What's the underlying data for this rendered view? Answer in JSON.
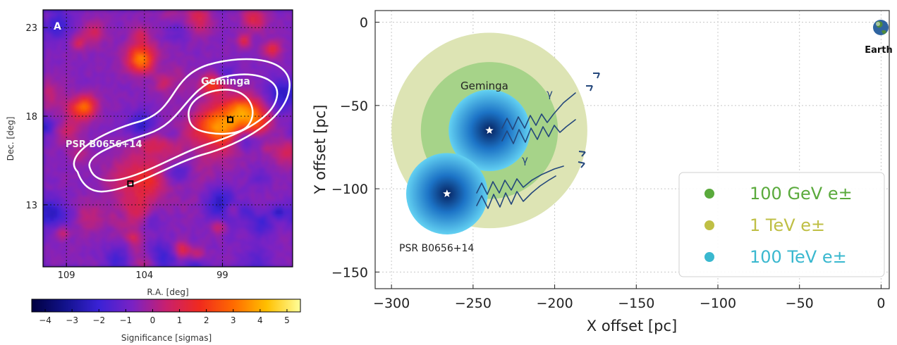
{
  "chart_data": [
    {
      "type": "heatmap",
      "panel_label": "A",
      "xlabel": "R.A. [deg]",
      "ylabel": "Dec. [deg]",
      "x_ticks": [
        109,
        104,
        99
      ],
      "y_ticks": [
        23,
        18,
        13
      ],
      "xlim": [
        110.5,
        94.5
      ],
      "ylim": [
        9.5,
        24
      ],
      "sources": [
        {
          "name": "Geminga",
          "ra": 98.5,
          "dec": 17.8
        },
        {
          "name": "PSR B0656+14",
          "ra": 104.9,
          "dec": 14.2
        }
      ],
      "colorbar": {
        "label": "Significance [sigmas]",
        "range": [
          -4.5,
          5.5
        ],
        "ticks": [
          -4,
          -3,
          -2,
          -1,
          0,
          1,
          2,
          3,
          4,
          5
        ],
        "tick_labels": [
          "−4",
          "−3",
          "−2",
          "−1",
          "0",
          "1",
          "2",
          "3",
          "4",
          "5"
        ],
        "colors": [
          "#000040",
          "#12128c",
          "#3a22d6",
          "#7a22c4",
          "#c8206e",
          "#f02a1e",
          "#ff6a00",
          "#ffc000",
          "#ffff9a"
        ]
      }
    },
    {
      "type": "scatter",
      "xlabel": "X offset [pc]",
      "ylabel": "Y offset [pc]",
      "xlim": [
        -310,
        5
      ],
      "ylim": [
        -160,
        7
      ],
      "x_ticks": [
        -300,
        -250,
        -200,
        -150,
        -100,
        -50,
        0
      ],
      "x_tick_labels": [
        "−300",
        "−250",
        "−200",
        "−150",
        "−100",
        "−50",
        "0"
      ],
      "y_ticks": [
        0,
        -50,
        -100,
        -150
      ],
      "y_tick_labels": [
        "0",
        "−50",
        "−100",
        "−150"
      ],
      "grid": true,
      "legend_position": "lower-right",
      "points": [
        {
          "name": "Geminga",
          "x": -240,
          "y": -65
        },
        {
          "name": "PSR B0656+14",
          "x": -266,
          "y": -103
        },
        {
          "name": "Earth",
          "x": 0,
          "y": 0
        }
      ],
      "geminga_halos": [
        {
          "label": "1 TeV e±",
          "radius_pc": 60,
          "color": "#dde4b4"
        },
        {
          "label": "100 GeV e±",
          "radius_pc": 42,
          "color": "#a6d389"
        },
        {
          "label": "100 TeV e±",
          "radius_pc": 25,
          "color": "#40b6dc"
        }
      ],
      "psr_halo": {
        "radius_pc": 25,
        "color": "#40b6dc"
      },
      "photon_label": "γ",
      "legend": [
        {
          "label": "100 GeV e±",
          "color": "#5aaa3c"
        },
        {
          "label": "1 TeV e±",
          "color": "#bfbf45"
        },
        {
          "label": "100 TeV e±",
          "color": "#3ab8cf"
        }
      ]
    }
  ]
}
